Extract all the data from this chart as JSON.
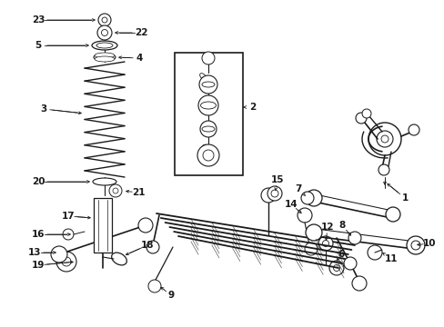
{
  "bg_color": "#ffffff",
  "line_color": "#1a1a1a",
  "fig_w": 4.89,
  "fig_h": 3.6,
  "dpi": 100,
  "label_fontsize": 7.5,
  "label_fontsize_sm": 7.0
}
